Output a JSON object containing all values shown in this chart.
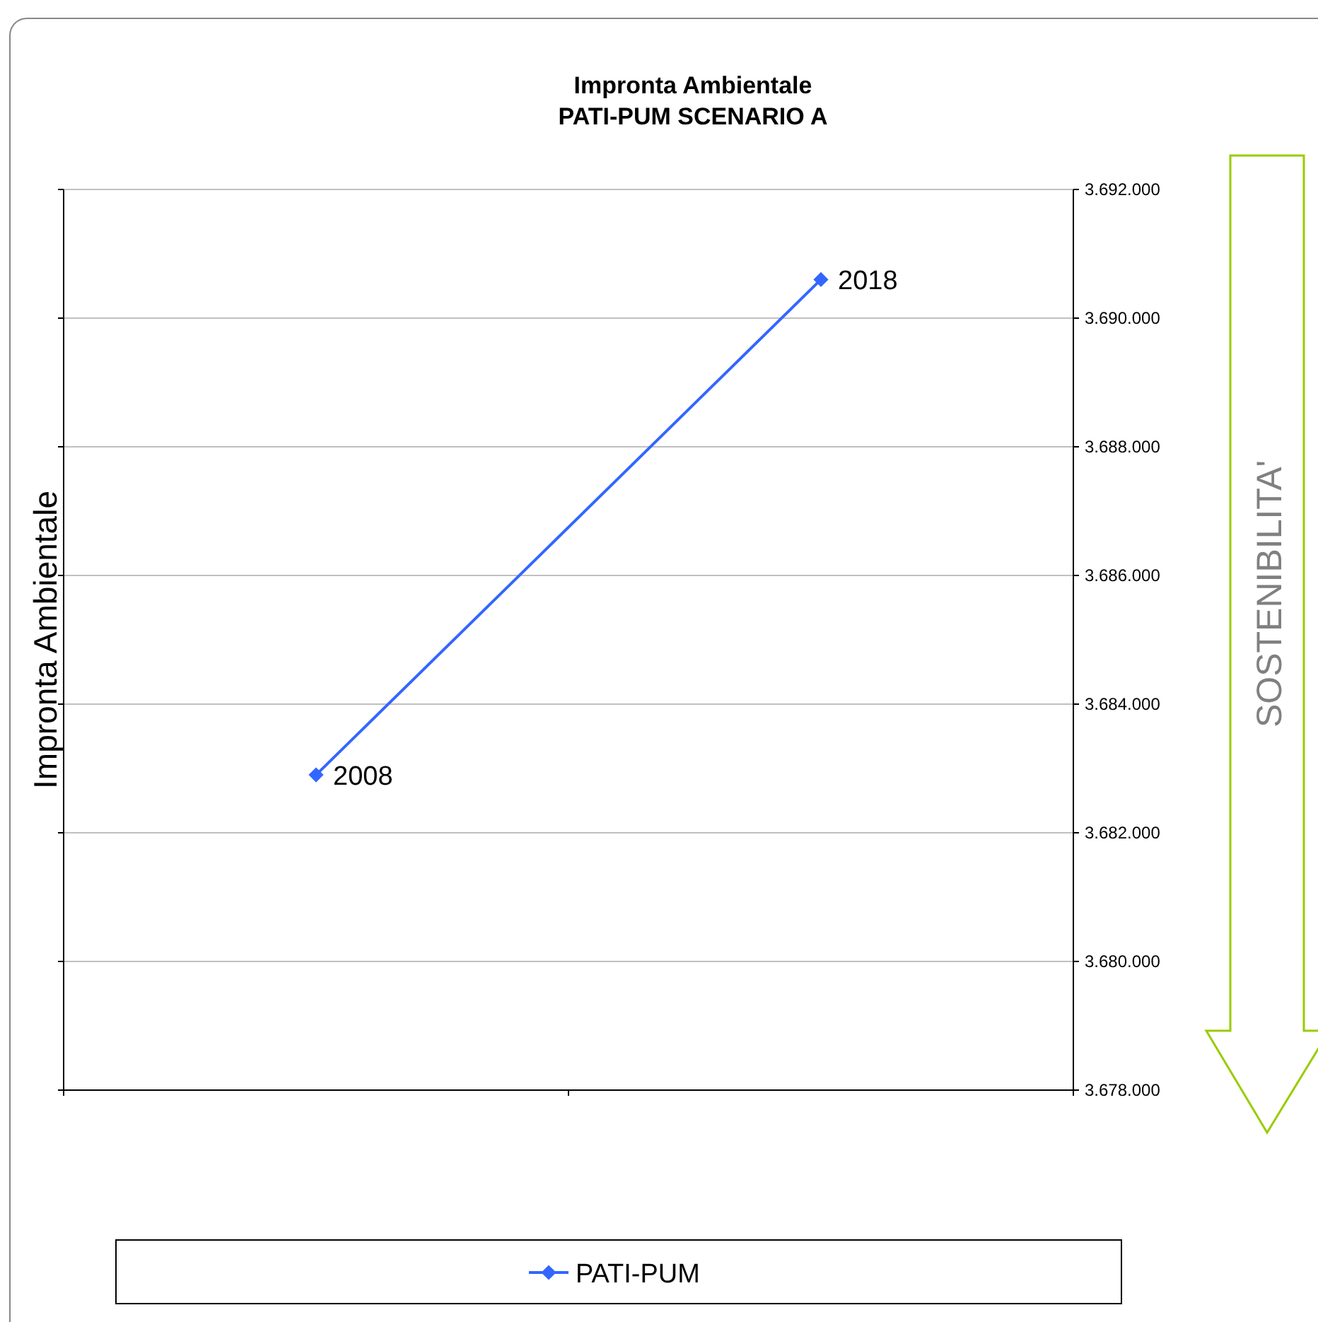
{
  "chart_data": {
    "type": "line",
    "title": "Impronta Ambientale\nPATI-PUM SCENARIO A",
    "ylabel": "Impronta Ambientale",
    "categories": [
      null,
      null
    ],
    "series": [
      {
        "name": "PATI-PUM",
        "color": "#3366ff",
        "values": [
          3682900,
          3690600
        ]
      }
    ],
    "ylim": [
      3678000,
      3692000
    ],
    "yticks": [
      {
        "value": 3678000,
        "label": "3.678.000"
      },
      {
        "value": 3680000,
        "label": "3.680.000"
      },
      {
        "value": 3682000,
        "label": "3.682.000"
      },
      {
        "value": 3684000,
        "label": "3.684.000"
      },
      {
        "value": 3686000,
        "label": "3.686.000"
      },
      {
        "value": 3688000,
        "label": "3.688.000"
      },
      {
        "value": 3690000,
        "label": "3.690.000"
      },
      {
        "value": 3692000,
        "label": "3.692.000"
      }
    ],
    "grid": "y",
    "legend": "bottom",
    "marker": "diamond",
    "line_style": "solid",
    "tick_labels": "y",
    "annotations": [
      "SOSTENIBILITA'",
      "2008",
      "2018"
    ]
  }
}
